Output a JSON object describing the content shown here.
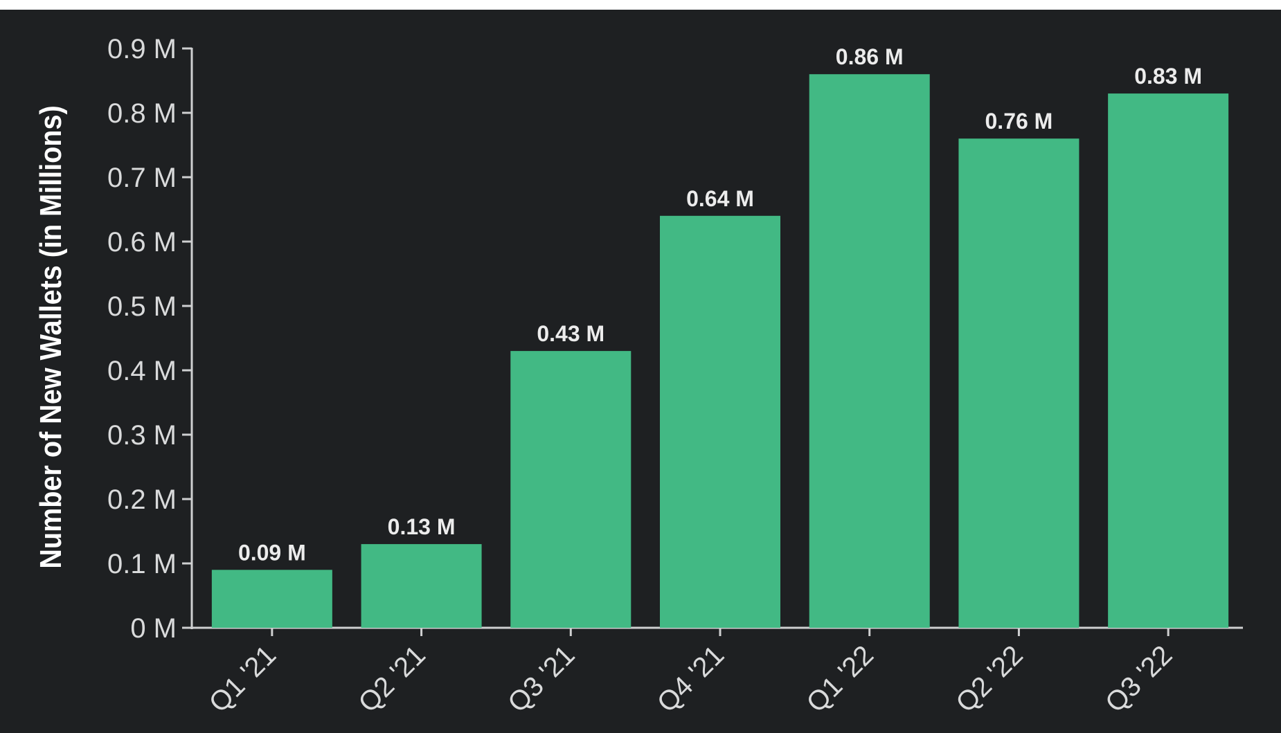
{
  "chart_data": {
    "type": "bar",
    "title": "",
    "xlabel": "",
    "ylabel": "Number of New Wallets (in Millions)",
    "categories": [
      "Q1 '21",
      "Q2 '21",
      "Q3 '21",
      "Q4 '21",
      "Q1 '22",
      "Q2 '22",
      "Q3 '22"
    ],
    "values": [
      0.09,
      0.13,
      0.43,
      0.64,
      0.86,
      0.76,
      0.83
    ],
    "value_labels": [
      "0.09 M",
      "0.13 M",
      "0.43 M",
      "0.64 M",
      "0.86 M",
      "0.76 M",
      "0.83 M"
    ],
    "yticks": [
      0,
      0.1,
      0.2,
      0.3,
      0.4,
      0.5,
      0.6,
      0.7,
      0.8,
      0.9
    ],
    "ytick_labels": [
      "0 M",
      "0.1 M",
      "0.2 M",
      "0.3 M",
      "0.4 M",
      "0.5 M",
      "0.6 M",
      "0.7 M",
      "0.8 M",
      "0.9 M"
    ],
    "ylim": [
      0,
      0.9
    ],
    "grid": false,
    "legend": "none",
    "colors": {
      "bar": "#42b984",
      "background": "#1e2022",
      "axis": "#cfd0d1",
      "text": "#d9dadb"
    }
  }
}
